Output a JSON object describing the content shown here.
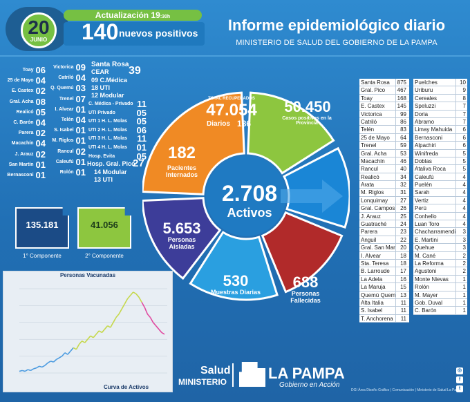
{
  "header": {
    "day": "20",
    "month": "JUNIO",
    "update_label": "Actualización 19",
    "update_time": ":30h",
    "new_positives": "140",
    "new_positives_label": "nuevos positivos",
    "title": "Informe epidemiológico diario",
    "subtitle": "MINISTERIO DE SALUD DEL GOBIERNO DE LA PAMPA"
  },
  "locs_col1": [
    {
      "name": "Toay",
      "value": "06"
    },
    {
      "name": "25 de Mayo",
      "value": "04"
    },
    {
      "name": "E. Castex",
      "value": "02"
    },
    {
      "name": "Gral. Acha",
      "value": "08"
    },
    {
      "name": "Realicó",
      "value": "05"
    },
    {
      "name": "C. Barón",
      "value": "04"
    },
    {
      "name": "Parera",
      "value": "02"
    },
    {
      "name": "Macachín",
      "value": "04"
    },
    {
      "name": "J. Arauz",
      "value": "02"
    },
    {
      "name": "San Martín",
      "value": "01"
    },
    {
      "name": "Bernasconi",
      "value": "01"
    }
  ],
  "locs_col2": [
    {
      "name": "Victorica",
      "value": "09"
    },
    {
      "name": "Catriló",
      "value": "04"
    },
    {
      "name": "Q. Quemú",
      "value": "03"
    },
    {
      "name": "Trenel",
      "value": "07"
    },
    {
      "name": "I. Alvear",
      "value": "01"
    },
    {
      "name": "Telén",
      "value": "04"
    },
    {
      "name": "S. Isabel",
      "value": "01"
    },
    {
      "name": "M. Riglos",
      "value": "01"
    },
    {
      "name": "Rancul",
      "value": "02"
    },
    {
      "name": "Caleufú",
      "value": "01"
    },
    {
      "name": "Rolón",
      "value": "01"
    }
  ],
  "hospitals": {
    "santa_rosa": "Santa Rosa",
    "cear": "CEAR",
    "cear_value": "39",
    "sr_lines": [
      {
        "num": "09",
        "label": "C.Médica"
      },
      {
        "num": "18",
        "label": "UTI"
      },
      {
        "num": "12",
        "label": "Modular"
      }
    ],
    "others": [
      {
        "name": "C. Médica - Privado",
        "value": "11"
      },
      {
        "name": "UTI Privado",
        "value": "05"
      },
      {
        "name": "UTI 1 H. L. Molas",
        "value": "05"
      },
      {
        "name": "UTI 2 H. L. Molas",
        "value": "06"
      },
      {
        "name": "UTI 3 H. L. Molas",
        "value": "11"
      },
      {
        "name": "UTI 4 H. L. Molas",
        "value": "01"
      },
      {
        "name": "Hosp. Evita",
        "value": "05"
      }
    ],
    "pico": "Hosp. Gral. Pico",
    "pico_value": "27",
    "pico_lines": [
      "14 Modular",
      "13 UTI"
    ]
  },
  "components": {
    "c1_value": "135.181",
    "c1_label": "1° Componente",
    "c2_value": "41.056",
    "c2_label": "2° Componente"
  },
  "wheel": {
    "recovered_label": "TOTAL RECUPERADOS",
    "recovered": "47.054",
    "daily_label": "Diarios",
    "daily": "186",
    "cases": "50.450",
    "cases_label": "Casos positivos en la Provincia",
    "hospitalized": "182",
    "hospitalized_label": "Pacientes Internados",
    "active": "2.708",
    "active_label": "Activos",
    "isolated": "5.653",
    "isolated_label": "Personas Aisladas",
    "samples": "530",
    "samples_label": "Muestras Diarias",
    "deaths": "688",
    "deaths_label": "Personas Fallecidas",
    "colors": {
      "green": "#8dc63f",
      "blue": "#1a86d6",
      "orange": "#f08a24",
      "purple": "#3d3d99",
      "teal": "#2a9fe0",
      "red": "#b12a2a",
      "center": "#1f7ac2"
    }
  },
  "table1": [
    [
      "Santa Rosa",
      "875"
    ],
    [
      "Gral. Pico",
      "467"
    ],
    [
      "Toay",
      "168"
    ],
    [
      "E. Castex",
      "145"
    ],
    [
      "Victorica",
      "99"
    ],
    [
      "Catriló",
      "86"
    ],
    [
      "Telén",
      "83"
    ],
    [
      "25 de Mayo",
      "64"
    ],
    [
      "Trenel",
      "59"
    ],
    [
      "Gral. Acha",
      "53"
    ],
    [
      "Macachín",
      "46"
    ],
    [
      "Rancul",
      "40"
    ],
    [
      "Realicó",
      "34"
    ],
    [
      "Arata",
      "32"
    ],
    [
      "M. Riglos",
      "31"
    ],
    [
      "Lonquimay",
      "27"
    ],
    [
      "Gral. Campos",
      "26"
    ],
    [
      "J. Arauz",
      "25"
    ],
    [
      "Guatraché",
      "24"
    ],
    [
      "Parera",
      "23"
    ],
    [
      "Anguil",
      "22"
    ],
    [
      "Gral. San Martín",
      "20"
    ],
    [
      "I. Alvear",
      "18"
    ],
    [
      "Sta. Teresa",
      "18"
    ],
    [
      "B. Larroude",
      "17"
    ],
    [
      "La Adela",
      "16"
    ],
    [
      "La Maruja",
      "15"
    ],
    [
      "Quemú Quemú",
      "13"
    ],
    [
      "Alta Italia",
      "11"
    ],
    [
      "S. Isabel",
      "11"
    ],
    [
      "T. Anchorena",
      "11"
    ]
  ],
  "table2": [
    [
      "Puelches",
      "10"
    ],
    [
      "Uriburu",
      "9"
    ],
    [
      "Cereales",
      "8"
    ],
    [
      "Speluzzi",
      "7"
    ],
    [
      "Doria",
      "7"
    ],
    [
      "Abramo",
      "7"
    ],
    [
      "Limay Mahuida",
      "6"
    ],
    [
      "Bernasconi",
      "6"
    ],
    [
      "Alpachiri",
      "6"
    ],
    [
      "Winifreda",
      "5"
    ],
    [
      "Doblas",
      "5"
    ],
    [
      "Ataliva Roca",
      "5"
    ],
    [
      "Caleufú",
      "4"
    ],
    [
      "Puelén",
      "4"
    ],
    [
      "Sarah",
      "4"
    ],
    [
      "Vertiz",
      "4"
    ],
    [
      "Perú",
      "4"
    ],
    [
      "Conhello",
      "4"
    ],
    [
      "Luan Toro",
      "4"
    ],
    [
      "Chacharramendi",
      "3"
    ],
    [
      "E. Martini",
      "3"
    ],
    [
      "Quehue",
      "3"
    ],
    [
      "M. Cané",
      "2"
    ],
    [
      "La Reforma",
      "2"
    ],
    [
      "Agustoni",
      "2"
    ],
    [
      "Monte Nievas",
      "1"
    ],
    [
      "Rolón",
      "1"
    ],
    [
      "M. Mayer",
      "1"
    ],
    [
      "Gob. Duval",
      "1"
    ],
    [
      "C. Barón",
      "1"
    ]
  ],
  "chart_data": {
    "type": "line",
    "title": "Personas Vacunadas",
    "footer": "Curva de Activos",
    "series": [
      {
        "values": [
          2,
          3,
          2,
          4,
          3,
          5,
          6,
          8,
          7,
          9,
          12,
          14,
          13,
          16,
          18,
          20,
          24,
          22,
          26,
          30,
          28,
          34,
          38,
          36,
          40,
          44,
          42,
          46,
          50,
          48,
          52,
          56,
          54,
          60,
          66,
          70,
          76,
          82,
          88,
          92,
          96,
          94,
          90,
          84,
          78,
          70,
          66,
          60,
          56,
          52,
          48,
          46
        ]
      }
    ],
    "ylim": [
      0,
      100
    ],
    "colors": [
      "#c5d84a",
      "#4b9be0",
      "#e04aa0"
    ]
  },
  "footer": {
    "salud": "Salud",
    "ministerio": "MINISTERIO",
    "lapampa": "LA PAMPA",
    "gobierno": "Gobierno en Acción",
    "credit": "DGI Área Diseño Gráfico | Comunicación | Ministerio de Salud La Pampa"
  }
}
